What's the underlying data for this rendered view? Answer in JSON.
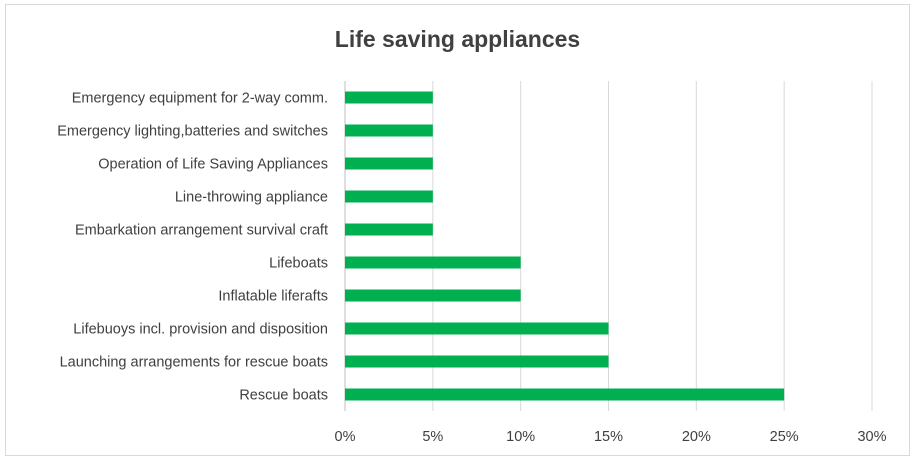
{
  "chart_data": {
    "type": "bar",
    "orientation": "horizontal",
    "title": "Life saving appliances",
    "categories": [
      "Emergency equipment for 2-way comm.",
      "Emergency lighting,batteries and switches",
      "Operation of Life Saving Appliances",
      "Line-throwing appliance",
      "Embarkation arrangement survival craft",
      "Lifeboats",
      "Inflatable liferafts",
      "Lifebuoys incl. provision and disposition",
      "Launching arrangements for rescue boats",
      "Rescue boats"
    ],
    "values": [
      5,
      5,
      5,
      5,
      5,
      10,
      10,
      15,
      15,
      25
    ],
    "xlim": [
      0,
      30
    ],
    "xticks": [
      0,
      5,
      10,
      15,
      20,
      25,
      30
    ],
    "xtick_labels": [
      "0%",
      "5%",
      "10%",
      "15%",
      "20%",
      "25%",
      "30%"
    ],
    "xlabel": "",
    "ylabel": "",
    "grid": "vertical",
    "legend": "none",
    "bar_color": "#00b050"
  }
}
